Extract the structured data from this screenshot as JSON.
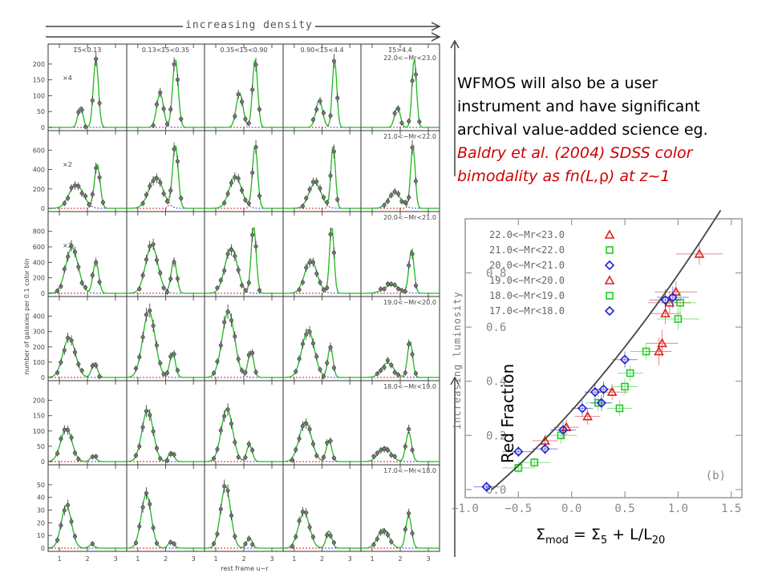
{
  "header": {
    "density_label": "increasing density",
    "luminosity_label": "increasing luminosity"
  },
  "caption": {
    "line1": "WFMOS will also be a user",
    "line2": "instrument and have significant",
    "line3": "archival value-added science eg.",
    "red1": "Baldry et al. (2004) SDSS color",
    "red2_pre": "bimodality as fn(L,",
    "red2_rho": "ρ",
    "red2_post": ") at z~1"
  },
  "grid": {
    "column_labels": [
      "Σ5<0.13",
      "0.13<Σ5<0.35",
      "0.35<Σ5<0.90",
      "0.90<Σ5<4.4",
      "Σ5>4.4"
    ],
    "row_labels": [
      "22.0<−Mr<23.0",
      "21.0<−Mr<22.0",
      "20.0<−Mr<21.0",
      "19.0<−Mr<20.0",
      "18.0<−Mr<19.0",
      "17.0<−Mr<18.0"
    ],
    "row_multipliers": [
      "×4",
      "×2",
      "×2",
      "",
      "",
      ""
    ],
    "row_yticks": [
      [
        "0",
        "50",
        "100",
        "150",
        "200"
      ],
      [
        "0",
        "200",
        "400",
        "600"
      ],
      [
        "0",
        "200",
        "400",
        "600",
        "800"
      ],
      [
        "0",
        "100",
        "200",
        "300",
        "400"
      ],
      [
        "0",
        "50",
        "100",
        "150",
        "200"
      ],
      [
        "0",
        "10",
        "20",
        "30",
        "40",
        "50"
      ]
    ],
    "row_ymax": [
      200,
      600,
      800,
      400,
      200,
      50
    ],
    "xticks": [
      "1",
      "2",
      "3"
    ],
    "xlabel": "rest frame u−r",
    "ylabel": "number of galaxies per 0.1 color bin",
    "colors": {
      "green": "#22bb22",
      "blue": "#3333cc",
      "red": "#cc2222",
      "dot": "#777777"
    },
    "panels": [
      [
        {
          "a": 0.3,
          "s": 0.09,
          "c": 1.75,
          "b": 1.0,
          "d": 2.3,
          "e": 0.09
        },
        {
          "a": 0.5,
          "s": 0.12,
          "c": 1.8,
          "b": 1.0,
          "d": 2.35,
          "e": 0.1
        },
        {
          "a": 0.5,
          "s": 0.12,
          "c": 1.85,
          "b": 1.0,
          "d": 2.4,
          "e": 0.09
        },
        {
          "a": 0.4,
          "s": 0.12,
          "c": 1.9,
          "b": 1.0,
          "d": 2.45,
          "e": 0.08
        },
        {
          "a": 0.3,
          "s": 0.1,
          "c": 1.9,
          "b": 1.0,
          "d": 2.5,
          "e": 0.08
        }
      ],
      [
        {
          "a": 0.38,
          "s": 0.25,
          "c": 1.6,
          "b": 0.7,
          "d": 2.35,
          "e": 0.1
        },
        {
          "a": 0.5,
          "s": 0.25,
          "c": 1.65,
          "b": 1.0,
          "d": 2.35,
          "e": 0.1
        },
        {
          "a": 0.5,
          "s": 0.22,
          "c": 1.7,
          "b": 1.0,
          "d": 2.4,
          "e": 0.09
        },
        {
          "a": 0.4,
          "s": 0.22,
          "c": 1.75,
          "b": 1.0,
          "d": 2.4,
          "e": 0.08
        },
        {
          "a": 0.25,
          "s": 0.22,
          "c": 1.8,
          "b": 1.0,
          "d": 2.45,
          "e": 0.08
        }
      ],
      [
        {
          "a": 0.68,
          "s": 0.22,
          "c": 1.45,
          "b": 0.48,
          "d": 2.3,
          "e": 0.1
        },
        {
          "a": 0.72,
          "s": 0.22,
          "c": 1.5,
          "b": 0.5,
          "d": 2.3,
          "e": 0.1
        },
        {
          "a": 0.68,
          "s": 0.22,
          "c": 1.55,
          "b": 1.0,
          "d": 2.35,
          "e": 0.09
        },
        {
          "a": 0.5,
          "s": 0.22,
          "c": 1.6,
          "b": 1.0,
          "d": 2.35,
          "e": 0.08
        },
        {
          "a": 0.12,
          "s": 0.28,
          "c": 1.7,
          "b": 0.65,
          "d": 2.4,
          "e": 0.09
        }
      ],
      [
        {
          "a": 0.6,
          "s": 0.22,
          "c": 1.35,
          "b": 0.22,
          "d": 2.25,
          "e": 0.1
        },
        {
          "a": 1.0,
          "s": 0.22,
          "c": 1.4,
          "b": 0.38,
          "d": 2.25,
          "e": 0.1
        },
        {
          "a": 1.0,
          "s": 0.22,
          "c": 1.45,
          "b": 0.4,
          "d": 2.25,
          "e": 0.1
        },
        {
          "a": 0.72,
          "s": 0.22,
          "c": 1.5,
          "b": 0.48,
          "d": 2.3,
          "e": 0.09
        },
        {
          "a": 0.22,
          "s": 0.22,
          "c": 1.55,
          "b": 0.55,
          "d": 2.35,
          "e": 0.09
        }
      ],
      [
        {
          "a": 0.5,
          "s": 0.2,
          "c": 1.25,
          "b": 0.08,
          "d": 2.2,
          "e": 0.1
        },
        {
          "a": 0.78,
          "s": 0.2,
          "c": 1.35,
          "b": 0.15,
          "d": 2.2,
          "e": 0.1
        },
        {
          "a": 0.8,
          "s": 0.2,
          "c": 1.4,
          "b": 0.25,
          "d": 2.2,
          "e": 0.1
        },
        {
          "a": 0.6,
          "s": 0.22,
          "c": 1.4,
          "b": 0.32,
          "d": 2.25,
          "e": 0.1
        },
        {
          "a": 0.22,
          "s": 0.22,
          "c": 1.45,
          "b": 0.45,
          "d": 2.3,
          "e": 0.1
        }
      ],
      [
        {
          "a": 0.62,
          "s": 0.18,
          "c": 1.25,
          "b": 0.05,
          "d": 2.15,
          "e": 0.1
        },
        {
          "a": 0.78,
          "s": 0.18,
          "c": 1.3,
          "b": 0.1,
          "d": 2.2,
          "e": 0.1
        },
        {
          "a": 0.9,
          "s": 0.18,
          "c": 1.35,
          "b": 0.15,
          "d": 2.2,
          "e": 0.1
        },
        {
          "a": 0.52,
          "s": 0.2,
          "c": 1.35,
          "b": 0.25,
          "d": 2.25,
          "e": 0.1
        },
        {
          "a": 0.28,
          "s": 0.2,
          "c": 1.4,
          "b": 0.48,
          "d": 2.3,
          "e": 0.1
        }
      ]
    ]
  },
  "chart_data": {
    "type": "scatter",
    "ylabel": "Red Fraction",
    "xlabel_parts": {
      "a": "Σ",
      "a_sub": "mod",
      "b": " = ",
      "c": "Σ",
      "c_sub": "5",
      "d": " + L/L",
      "d_sub": "20"
    },
    "panel_tag": "(b)",
    "xlim": [
      -1.0,
      1.6
    ],
    "ylim": [
      -0.03,
      1.0
    ],
    "xticks": [
      "−1.0",
      "−0.5",
      "0.0",
      "0.5",
      "1.0",
      "1.5"
    ],
    "yticks": [
      "0.0",
      "0.2",
      "0.4",
      "0.6",
      "0.8"
    ],
    "legend": [
      {
        "label": "22.0<−Mr<23.0",
        "marker": "triangle",
        "color": "#dd2222"
      },
      {
        "label": "21.0<−Mr<22.0",
        "marker": "square",
        "color": "#22cc22"
      },
      {
        "label": "20.0<−Mr<21.0",
        "marker": "diamond",
        "color": "#2222cc"
      },
      {
        "label": "19.0<−Mr<20.0",
        "marker": "triangle",
        "color": "#dd2222"
      },
      {
        "label": "18.0<−Mr<19.0",
        "marker": "square",
        "color": "#22cc22"
      },
      {
        "label": "17.0<−Mr<18.0",
        "marker": "diamond",
        "color": "#2222cc"
      }
    ],
    "series": [
      {
        "marker": "triangle",
        "color": "#dd2222",
        "points": [
          [
            1.2,
            0.87,
            0.22,
            0.04
          ],
          [
            0.98,
            0.73,
            0.2,
            0.04
          ],
          [
            0.92,
            0.69,
            0.2,
            0.04
          ],
          [
            0.88,
            0.65,
            0.15,
            0.04
          ],
          [
            0.85,
            0.54,
            0.15,
            0.05
          ],
          [
            0.82,
            0.51,
            0.12,
            0.05
          ],
          [
            0.38,
            0.36,
            0.15,
            0.03
          ],
          [
            0.15,
            0.27,
            0.12,
            0.03
          ],
          [
            -0.05,
            0.23,
            0.12,
            0.03
          ],
          [
            -0.25,
            0.18,
            0.12,
            0.02
          ]
        ]
      },
      {
        "marker": "square",
        "color": "#22cc22",
        "points": [
          [
            1.0,
            0.63,
            0.2,
            0.04
          ],
          [
            1.02,
            0.69,
            0.15,
            0.04
          ],
          [
            0.7,
            0.51,
            0.15,
            0.03
          ],
          [
            0.55,
            0.43,
            0.12,
            0.03
          ],
          [
            0.5,
            0.38,
            0.12,
            0.03
          ],
          [
            0.45,
            0.3,
            0.12,
            0.03
          ],
          [
            0.25,
            0.32,
            0.12,
            0.03
          ],
          [
            -0.1,
            0.2,
            0.15,
            0.03
          ],
          [
            -0.35,
            0.1,
            0.15,
            0.02
          ],
          [
            -0.5,
            0.08,
            0.15,
            0.02
          ]
        ]
      },
      {
        "marker": "diamond",
        "color": "#2222cc",
        "points": [
          [
            0.95,
            0.71,
            0.15,
            0.04
          ],
          [
            0.88,
            0.7,
            0.15,
            0.04
          ],
          [
            0.5,
            0.48,
            0.12,
            0.03
          ],
          [
            0.3,
            0.37,
            0.1,
            0.03
          ],
          [
            0.22,
            0.36,
            0.1,
            0.03
          ],
          [
            0.28,
            0.32,
            0.1,
            0.03
          ],
          [
            0.1,
            0.3,
            0.1,
            0.03
          ],
          [
            -0.08,
            0.22,
            0.12,
            0.03
          ],
          [
            -0.25,
            0.15,
            0.12,
            0.02
          ],
          [
            -0.5,
            0.14,
            0.15,
            0.02
          ],
          [
            -0.8,
            0.01,
            0.12,
            0.02
          ]
        ]
      }
    ],
    "curve": {
      "x0": -0.75,
      "x1": 1.4
    }
  }
}
